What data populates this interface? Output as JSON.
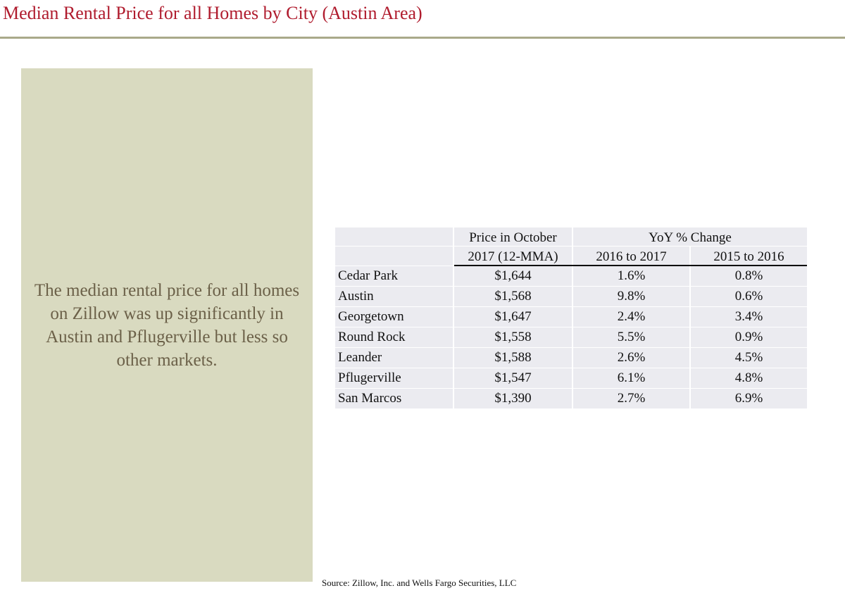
{
  "title": "Median Rental Price for all Homes by City (Austin Area)",
  "sidebar": {
    "text": "The median rental price for all homes on Zillow was up significantly in Austin and Pflugerville but less so other markets."
  },
  "table": {
    "header": {
      "price": [
        "Price in October",
        "2017 (12-MMA)"
      ],
      "group": "YoY % Change",
      "columns": [
        "2016 to 2017",
        "2015 to 2016"
      ]
    },
    "rows": [
      [
        "Cedar Park",
        "$1,644",
        "1.6%",
        "0.8%"
      ],
      [
        "Austin",
        "$1,568",
        "9.8%",
        "0.6%"
      ],
      [
        "Georgetown",
        "$1,647",
        "2.4%",
        "3.4%"
      ],
      [
        "Round Rock",
        "$1,558",
        "5.5%",
        "0.9%"
      ],
      [
        "Leander",
        "$1,588",
        "2.6%",
        "4.5%"
      ],
      [
        "Pflugerville",
        "$1,547",
        "6.1%",
        "4.8%"
      ],
      [
        "San Marcos",
        "$1,390",
        "2.7%",
        "6.9%"
      ]
    ]
  },
  "source": "Source: Zillow, Inc. and Wells Fargo Securities, LLC"
}
